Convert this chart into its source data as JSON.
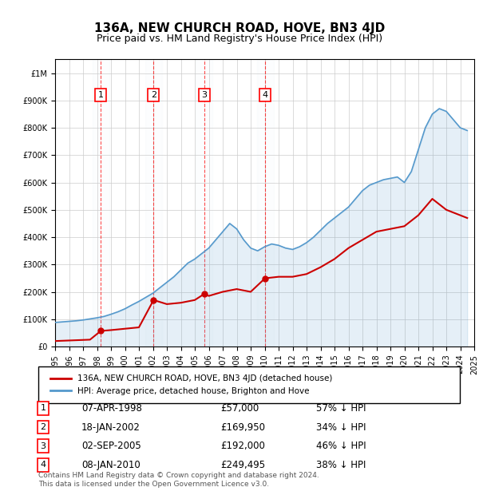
{
  "title": "136A, NEW CHURCH ROAD, HOVE, BN3 4JD",
  "subtitle": "Price paid vs. HM Land Registry's House Price Index (HPI)",
  "footer": "Contains HM Land Registry data © Crown copyright and database right 2024.\nThis data is licensed under the Open Government Licence v3.0.",
  "legend_red": "136A, NEW CHURCH ROAD, HOVE, BN3 4JD (detached house)",
  "legend_blue": "HPI: Average price, detached house, Brighton and Hove",
  "transactions": [
    {
      "num": 1,
      "date": "07-APR-1998",
      "price": 57000,
      "pct": "57% ↓ HPI",
      "year": 1998.27
    },
    {
      "num": 2,
      "date": "18-JAN-2002",
      "price": 169950,
      "pct": "34% ↓ HPI",
      "year": 2002.05
    },
    {
      "num": 3,
      "date": "02-SEP-2005",
      "price": 192000,
      "pct": "46% ↓ HPI",
      "year": 2005.67
    },
    {
      "num": 4,
      "date": "08-JAN-2010",
      "price": 249495,
      "pct": "38% ↓ HPI",
      "year": 2010.03
    }
  ],
  "hpi_x": [
    1995,
    1995.5,
    1996,
    1996.5,
    1997,
    1997.5,
    1998,
    1998.5,
    1999,
    1999.5,
    2000,
    2000.5,
    2001,
    2001.5,
    2002,
    2002.5,
    2003,
    2003.5,
    2004,
    2004.5,
    2005,
    2005.5,
    2006,
    2006.5,
    2007,
    2007.5,
    2008,
    2008.5,
    2009,
    2009.5,
    2010,
    2010.5,
    2011,
    2011.5,
    2012,
    2012.5,
    2013,
    2013.5,
    2014,
    2014.5,
    2015,
    2015.5,
    2016,
    2016.5,
    2017,
    2017.5,
    2018,
    2018.5,
    2019,
    2019.5,
    2020,
    2020.5,
    2021,
    2021.5,
    2022,
    2022.5,
    2023,
    2023.5,
    2024,
    2024.5
  ],
  "hpi_y": [
    88000,
    90000,
    92000,
    94000,
    97000,
    101000,
    105000,
    110000,
    118000,
    127000,
    138000,
    152000,
    165000,
    180000,
    195000,
    215000,
    235000,
    255000,
    280000,
    305000,
    320000,
    340000,
    360000,
    390000,
    420000,
    450000,
    430000,
    390000,
    360000,
    350000,
    365000,
    375000,
    370000,
    360000,
    355000,
    365000,
    380000,
    400000,
    425000,
    450000,
    470000,
    490000,
    510000,
    540000,
    570000,
    590000,
    600000,
    610000,
    615000,
    620000,
    600000,
    640000,
    720000,
    800000,
    850000,
    870000,
    860000,
    830000,
    800000,
    790000
  ],
  "red_x": [
    1995,
    1995.5,
    1996,
    1996.5,
    1997,
    1997.5,
    1998.27,
    1999,
    2000,
    2001,
    2002.05,
    2003,
    2004,
    2005,
    2005.67,
    2006,
    2007,
    2008,
    2009,
    2010.03,
    2011,
    2012,
    2013,
    2014,
    2015,
    2016,
    2017,
    2018,
    2019,
    2020,
    2021,
    2022,
    2023,
    2024,
    2024.5
  ],
  "red_y": [
    20000,
    21000,
    22000,
    23000,
    24000,
    25000,
    57000,
    60000,
    65000,
    70000,
    169950,
    155000,
    160000,
    170000,
    192000,
    185000,
    200000,
    210000,
    200000,
    249495,
    255000,
    255000,
    265000,
    290000,
    320000,
    360000,
    390000,
    420000,
    430000,
    440000,
    480000,
    540000,
    500000,
    480000,
    470000
  ],
  "ylim": [
    0,
    1050000
  ],
  "xlim": [
    1995,
    2025
  ],
  "bg_color": "#dde8f5",
  "red_color": "#cc0000",
  "blue_color": "#5599cc"
}
